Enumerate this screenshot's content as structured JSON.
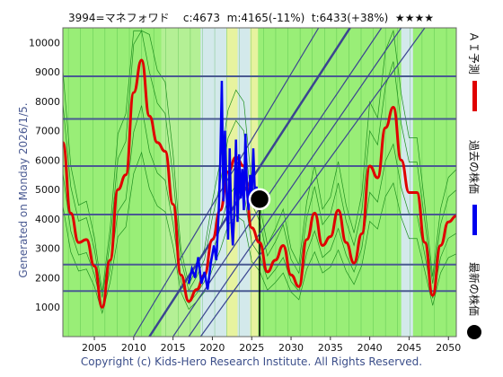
{
  "header": {
    "title": "3994=マネフォワド    c:4673  m:4165(-11%)  t:6433(+38%)  ★★★★"
  },
  "side_note": "Generated on Monday 2026/1/5.",
  "copyright": "Copyright (c) Kids-Hero Research Institute. All Rights Reserved.",
  "legend": {
    "ai_forecast": "ＡＩ予測",
    "past_price": "過去の株価",
    "latest_price": "最新の株価"
  },
  "colors": {
    "forecast": "#e00000",
    "past_price": "#0000ee",
    "latest_marker": "#000000",
    "band_green": "#99ee77",
    "band_light_blue": "#dde8ff",
    "band_yellow": "#f5f3a6",
    "grid": "#4a5a92",
    "trend_lines": "#3b4590"
  },
  "chart_data": {
    "type": "line",
    "xlim": [
      2001,
      2051
    ],
    "ylim": [
      0,
      10500
    ],
    "xticks": [
      2005,
      2010,
      2015,
      2020,
      2025,
      2030,
      2035,
      2040,
      2045,
      2050
    ],
    "yticks": [
      1000,
      2000,
      3000,
      4000,
      5000,
      6000,
      7000,
      8000,
      9000,
      10000
    ],
    "horizontal_levels": [
      1550,
      2450,
      4150,
      5800,
      7400,
      8850
    ],
    "current": {
      "x": 2026.0,
      "y": 4673
    },
    "series": [
      {
        "name": "ＡＩ予測",
        "x": [
          2001,
          2002,
          2003,
          2004,
          2005,
          2006,
          2007,
          2008,
          2009,
          2010,
          2011,
          2012,
          2013,
          2014,
          2015,
          2016,
          2017,
          2018,
          2019,
          2020,
          2021,
          2022,
          2023,
          2024,
          2025,
          2026,
          2027,
          2028,
          2029,
          2030,
          2031,
          2032,
          2033,
          2034,
          2035,
          2036,
          2037,
          2038,
          2039,
          2040,
          2041,
          2042,
          2043,
          2044,
          2045,
          2046,
          2047,
          2048,
          2049,
          2050,
          2051
        ],
        "values": [
          6600,
          4200,
          3200,
          3300,
          2400,
          1000,
          2600,
          5000,
          5500,
          8300,
          9400,
          7500,
          6600,
          6300,
          4500,
          2100,
          1200,
          1600,
          2100,
          3300,
          4300,
          5600,
          6100,
          5800,
          3700,
          3200,
          2200,
          2600,
          3100,
          2100,
          1700,
          3300,
          4200,
          3100,
          3400,
          4300,
          3200,
          2500,
          3500,
          5800,
          5400,
          7100,
          7800,
          6000,
          4900,
          4900,
          3200,
          1400,
          3100,
          3900,
          4100
        ]
      },
      {
        "name": "過去の株価",
        "x": [
          2017.0,
          2017.4,
          2017.8,
          2018.2,
          2018.6,
          2019.0,
          2019.4,
          2019.8,
          2020.2,
          2020.5,
          2020.8,
          2021.0,
          2021.2,
          2021.4,
          2021.6,
          2021.8,
          2022.0,
          2022.2,
          2022.4,
          2022.6,
          2022.8,
          2023.0,
          2023.2,
          2023.4,
          2023.6,
          2023.8,
          2024.0,
          2024.2,
          2024.4,
          2024.6,
          2024.8,
          2025.0,
          2025.2,
          2025.4,
          2025.6,
          2025.8,
          2026.0
        ],
        "values": [
          1800,
          2300,
          2000,
          2700,
          1800,
          2200,
          1600,
          2500,
          3100,
          2600,
          4200,
          5900,
          8700,
          4600,
          7000,
          5000,
          3300,
          6400,
          4000,
          3100,
          4300,
          6700,
          3900,
          6200,
          4700,
          5700,
          4300,
          6900,
          5000,
          4300,
          5500,
          4700,
          6400,
          4900,
          5100,
          4600,
          4673
        ]
      }
    ]
  }
}
